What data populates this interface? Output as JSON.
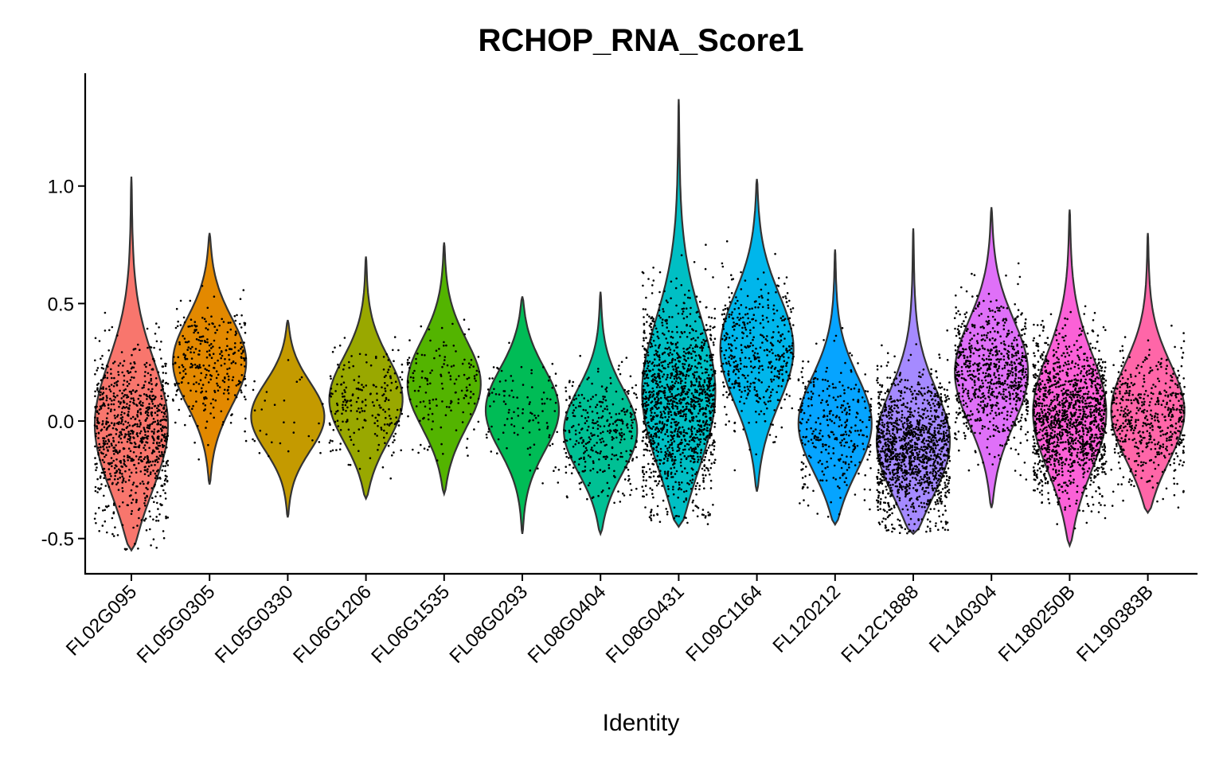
{
  "chart_data": {
    "type": "violin",
    "title": "RCHOP_RNA_Score1",
    "xlabel": "Identity",
    "ylabel": "",
    "ylim": [
      -0.65,
      1.48
    ],
    "yticks": [
      -0.5,
      0.0,
      0.5,
      1.0
    ],
    "ytick_labels": [
      "-0.5",
      "0.0",
      "0.5",
      "1.0"
    ],
    "grid": false,
    "legend": "none",
    "groups": [
      {
        "name": "FL02G095",
        "color": "#F8766D",
        "min": -0.55,
        "max": 1.04,
        "median": -0.05,
        "n_points": 900
      },
      {
        "name": "FL05G0305",
        "color": "#E38900",
        "min": -0.27,
        "max": 0.8,
        "median": 0.25,
        "n_points": 300
      },
      {
        "name": "FL05G0330",
        "color": "#C49A00",
        "min": -0.41,
        "max": 0.43,
        "median": 0.02,
        "n_points": 30
      },
      {
        "name": "FL06G1206",
        "color": "#99A800",
        "min": -0.33,
        "max": 0.7,
        "median": 0.08,
        "n_points": 220
      },
      {
        "name": "FL06G1535",
        "color": "#53B400",
        "min": -0.31,
        "max": 0.76,
        "median": 0.15,
        "n_points": 150
      },
      {
        "name": "FL08G0293",
        "color": "#00BC56",
        "min": -0.48,
        "max": 0.53,
        "median": 0.05,
        "n_points": 110
      },
      {
        "name": "FL08G0404",
        "color": "#00C094",
        "min": -0.48,
        "max": 0.55,
        "median": -0.05,
        "n_points": 330
      },
      {
        "name": "FL08G0431",
        "color": "#00BFC4",
        "min": -0.45,
        "max": 1.37,
        "median": 0.08,
        "n_points": 2400
      },
      {
        "name": "FL09C1164",
        "color": "#00B6EB",
        "min": -0.3,
        "max": 1.03,
        "median": 0.3,
        "n_points": 450
      },
      {
        "name": "FL120212",
        "color": "#06A4FF",
        "min": -0.44,
        "max": 0.73,
        "median": -0.03,
        "n_points": 330
      },
      {
        "name": "FL12C1888",
        "color": "#A58AFF",
        "min": -0.48,
        "max": 0.82,
        "median": -0.12,
        "n_points": 1800
      },
      {
        "name": "FL140304",
        "color": "#DF70F8",
        "min": -0.37,
        "max": 0.91,
        "median": 0.2,
        "n_points": 800
      },
      {
        "name": "FL180250B",
        "color": "#FB61D7",
        "min": -0.53,
        "max": 0.9,
        "median": 0.02,
        "n_points": 2200
      },
      {
        "name": "FL190383B",
        "color": "#FF66A8",
        "min": -0.39,
        "max": 0.8,
        "median": 0.02,
        "n_points": 550
      }
    ]
  }
}
